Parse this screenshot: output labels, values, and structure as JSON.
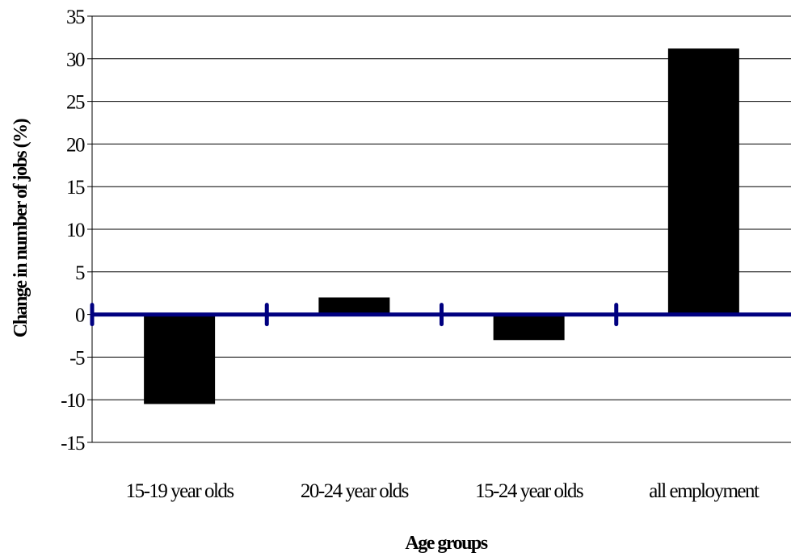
{
  "chart_data": {
    "type": "bar",
    "categories": [
      "15-19 year olds",
      "20-24 year olds",
      "15-24 year olds",
      "all employment"
    ],
    "values": [
      -10.5,
      2.0,
      -3.0,
      31.2
    ],
    "xlabel": "Age groups",
    "ylabel": "Change in number of jobs (%)",
    "ylim": [
      -15,
      35
    ],
    "yticks": [
      35,
      30,
      25,
      20,
      15,
      10,
      5,
      0,
      -5,
      -10,
      -15
    ],
    "grid": true,
    "legend": "none",
    "colors": {
      "bar": "#000000",
      "zero_line": "#000080",
      "grid": "#000000"
    }
  }
}
